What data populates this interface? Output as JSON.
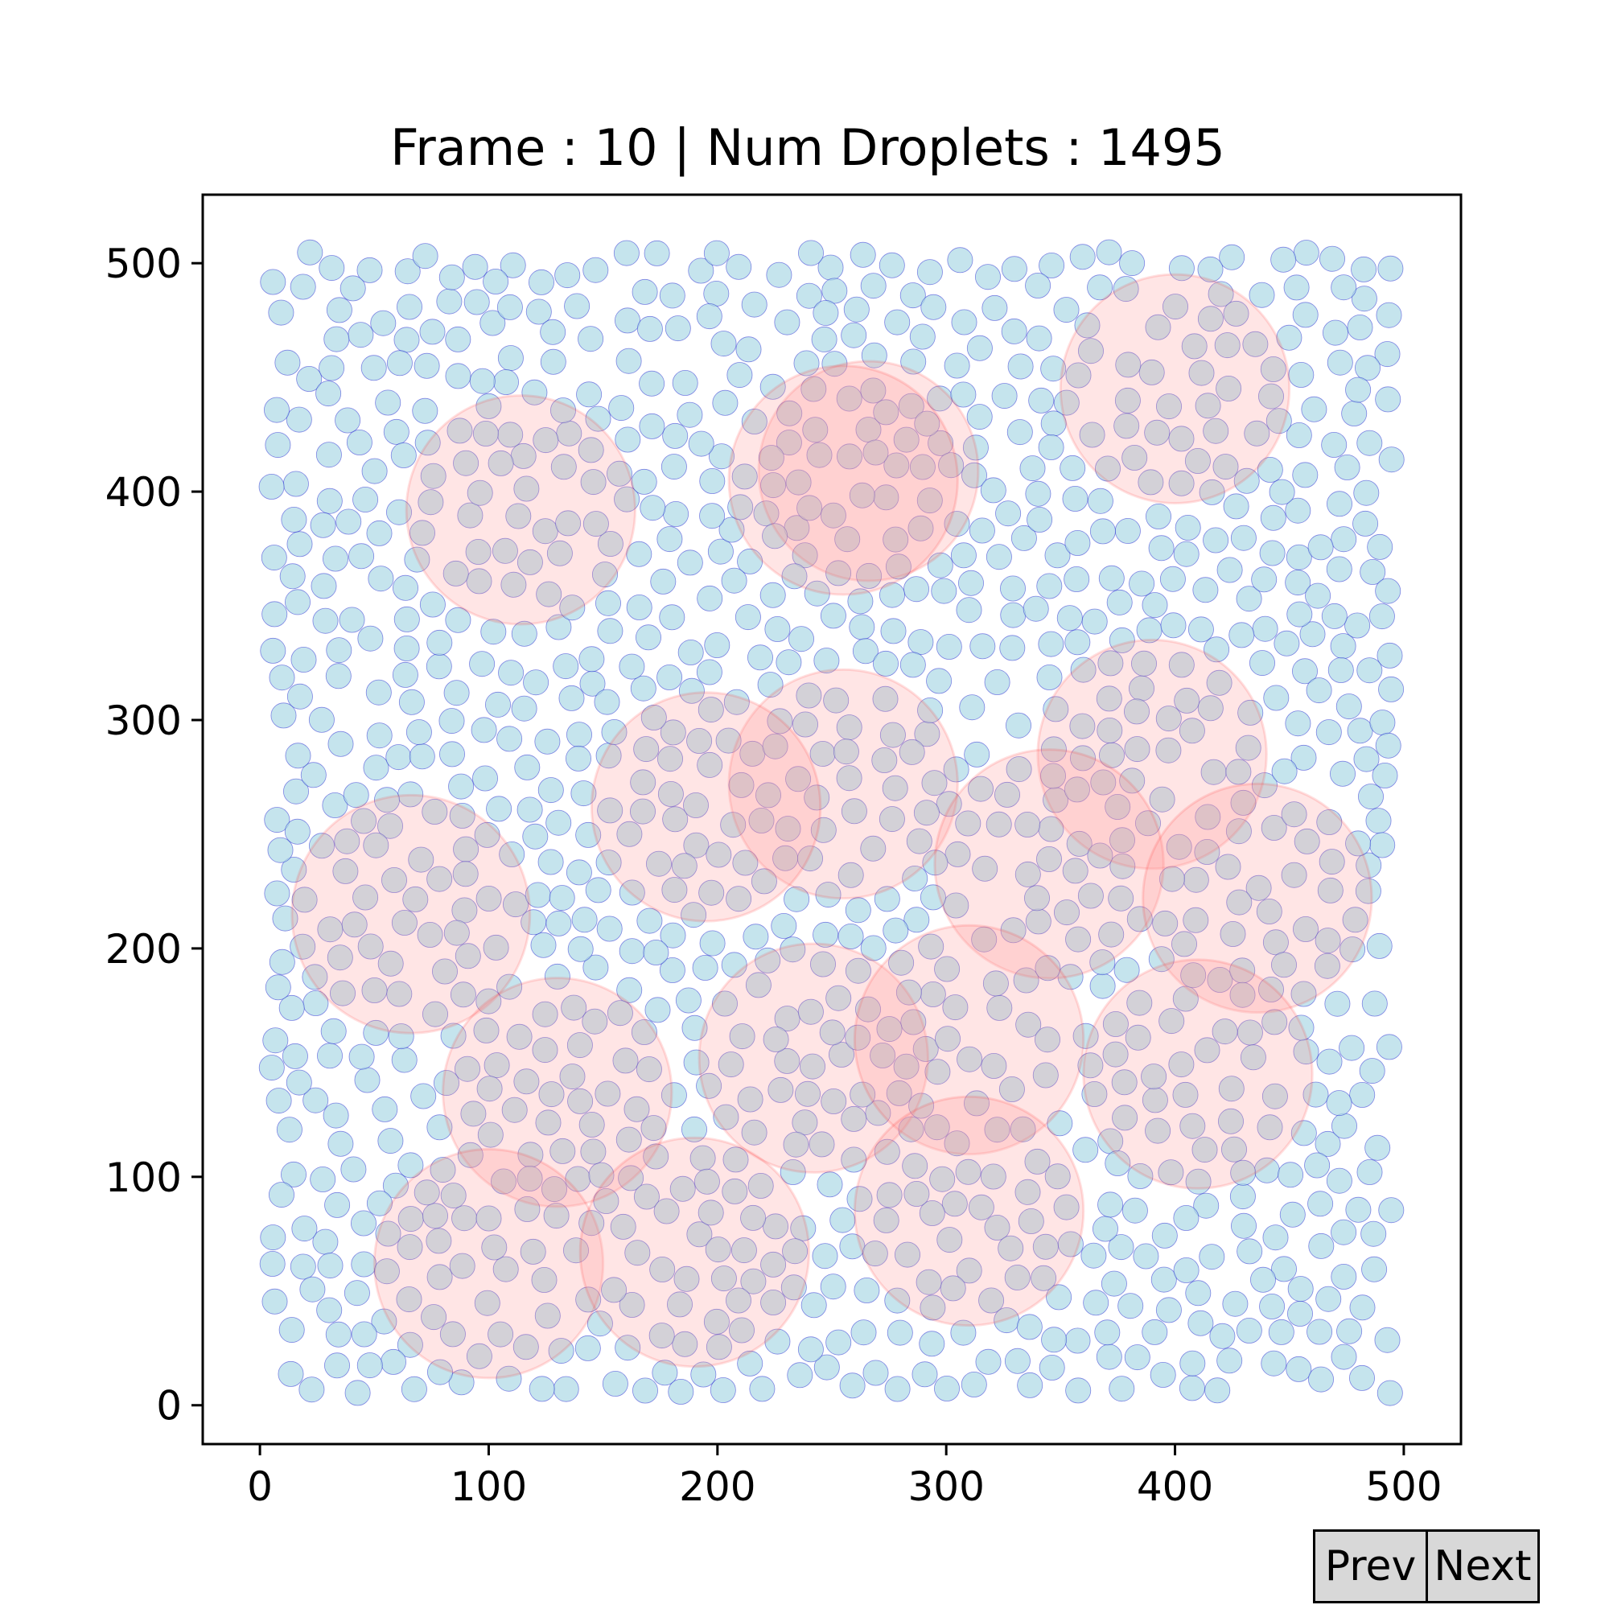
{
  "ui": {
    "title": "Frame : 10 | Num Droplets : 1495",
    "prev_label": "Prev",
    "next_label": "Next"
  },
  "colors": {
    "droplet_fill": "#add8e6",
    "droplet_edge": "#0000cd",
    "cluster_fill": "#ff9999",
    "cluster_edge": "#ff0000"
  },
  "chart_data": {
    "type": "scatter",
    "title": "Frame : 10 | Num Droplets : 1495",
    "xlabel": "",
    "ylabel": "",
    "xlim": [
      -25,
      525
    ],
    "ylim": [
      -17,
      530
    ],
    "xticks": [
      0,
      100,
      200,
      300,
      400,
      500
    ],
    "yticks": [
      0,
      100,
      200,
      300,
      400,
      500
    ],
    "grid": false,
    "frame": 10,
    "num_droplets": 1495,
    "droplet_radius": 5.5,
    "clusters": [
      {
        "x": 114,
        "y": 392,
        "r": 50
      },
      {
        "x": 266,
        "y": 409,
        "r": 48
      },
      {
        "x": 255,
        "y": 405,
        "r": 50
      },
      {
        "x": 400,
        "y": 445,
        "r": 50
      },
      {
        "x": 390,
        "y": 285,
        "r": 50
      },
      {
        "x": 255,
        "y": 272,
        "r": 50
      },
      {
        "x": 195,
        "y": 262,
        "r": 50
      },
      {
        "x": 66,
        "y": 215,
        "r": 52
      },
      {
        "x": 345,
        "y": 237,
        "r": 50
      },
      {
        "x": 436,
        "y": 222,
        "r": 50
      },
      {
        "x": 130,
        "y": 137,
        "r": 50
      },
      {
        "x": 242,
        "y": 152,
        "r": 50
      },
      {
        "x": 310,
        "y": 160,
        "r": 50
      },
      {
        "x": 410,
        "y": 145,
        "r": 50
      },
      {
        "x": 100,
        "y": 62,
        "r": 50
      },
      {
        "x": 190,
        "y": 67,
        "r": 50
      },
      {
        "x": 310,
        "y": 85,
        "r": 50
      }
    ]
  }
}
